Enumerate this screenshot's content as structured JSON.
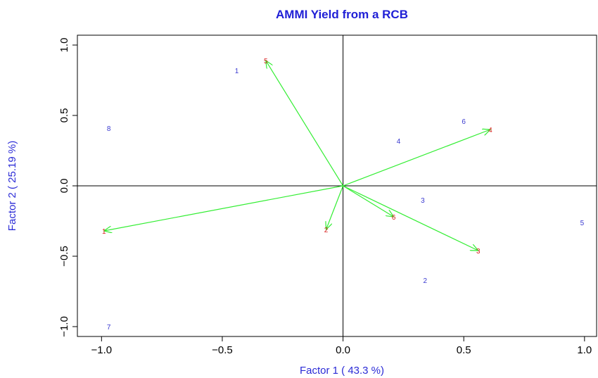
{
  "chart_data": {
    "type": "biplot",
    "title": "AMMI Yield from a RCB",
    "xlabel": "Factor 1 ( 43.3 %)",
    "ylabel": "Factor 2 ( 25.19 %)",
    "xlim": [
      -1.1,
      1.05
    ],
    "ylim": [
      -1.07,
      1.07
    ],
    "xticks": [
      -1.0,
      -0.5,
      0.0,
      0.5,
      1.0
    ],
    "xtick_labels": [
      "−1.0",
      "−0.5",
      "0.0",
      "0.5",
      "1.0"
    ],
    "yticks": [
      -1.0,
      -0.5,
      0.0,
      0.5,
      1.0
    ],
    "ytick_labels": [
      "−1.0",
      "−0.5",
      "0.0",
      "0.5",
      "1.0"
    ],
    "colors": {
      "title": "#1f1fd6",
      "axis_label": "#2b2bd6",
      "genotype": "#3a3ad0",
      "environment": "#d81b1b",
      "arrow": "#33ee33"
    },
    "genotypes": [
      {
        "label": "1",
        "x": -0.44,
        "y": 0.82
      },
      {
        "label": "2",
        "x": 0.34,
        "y": -0.67
      },
      {
        "label": "3",
        "x": 0.33,
        "y": -0.1
      },
      {
        "label": "4",
        "x": 0.23,
        "y": 0.32
      },
      {
        "label": "5",
        "x": 0.99,
        "y": -0.26
      },
      {
        "label": "6",
        "x": 0.5,
        "y": 0.46
      },
      {
        "label": "7",
        "x": -0.97,
        "y": -1.0
      },
      {
        "label": "8",
        "x": -0.97,
        "y": 0.41
      }
    ],
    "environments": [
      {
        "label": "1",
        "x": -0.99,
        "y": -0.32
      },
      {
        "label": "2",
        "x": -0.07,
        "y": -0.31
      },
      {
        "label": "3",
        "x": 0.56,
        "y": -0.46
      },
      {
        "label": "4",
        "x": 0.61,
        "y": 0.4
      },
      {
        "label": "5",
        "x": -0.32,
        "y": 0.89
      },
      {
        "label": "6",
        "x": 0.21,
        "y": -0.22
      }
    ]
  }
}
